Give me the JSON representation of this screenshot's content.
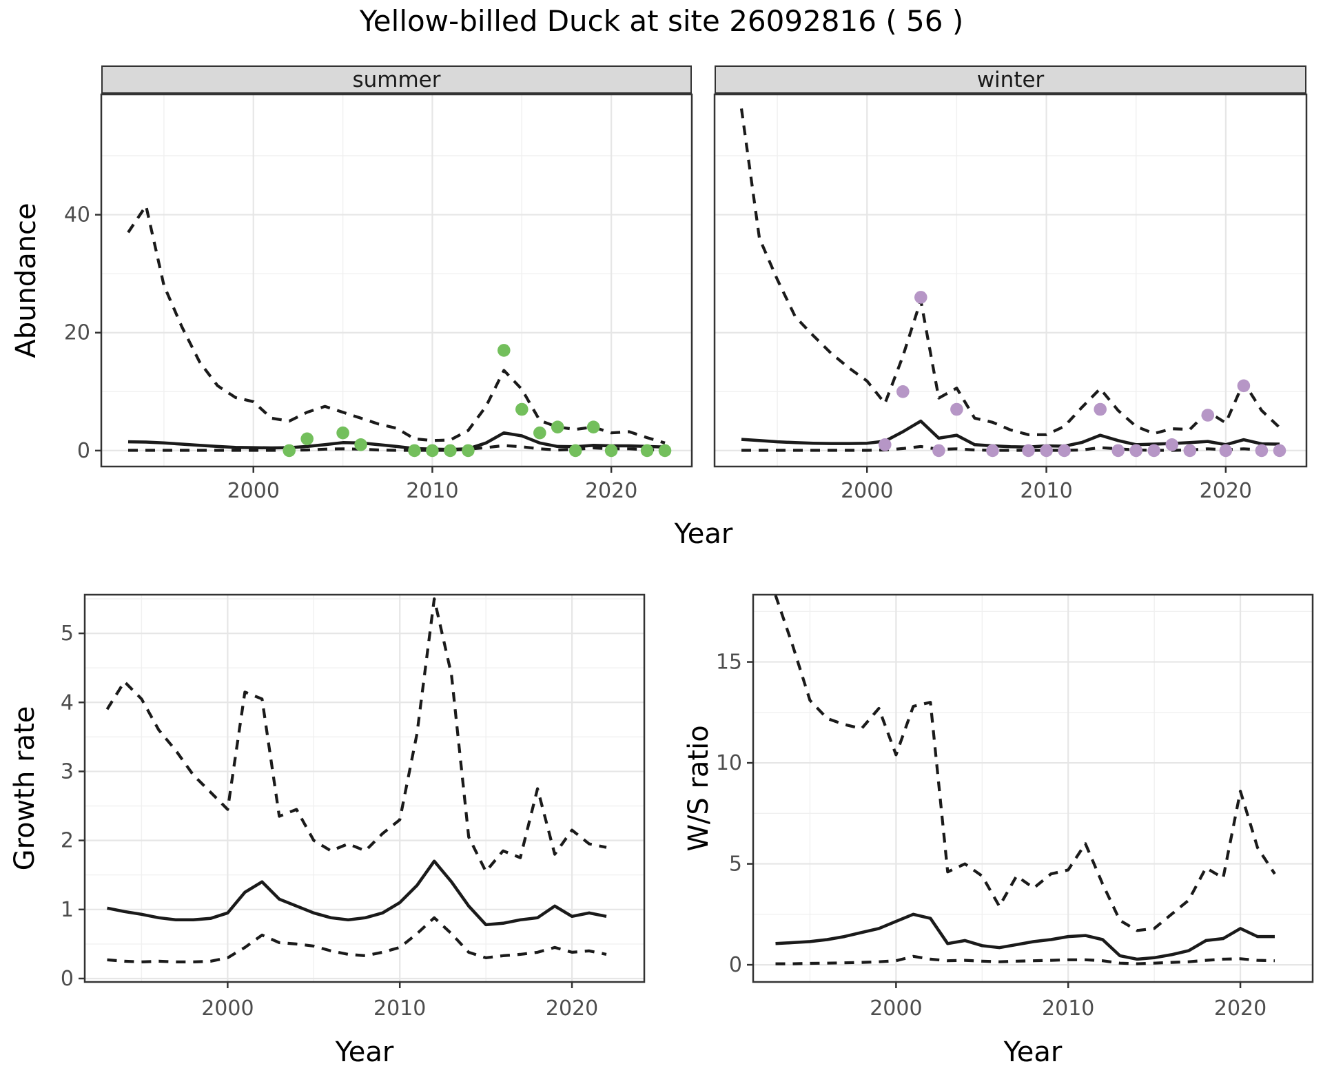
{
  "title": "Yellow-billed Duck at site 26092816 ( 56 )",
  "facets": [
    {
      "label": "summer"
    },
    {
      "label": "winter"
    }
  ],
  "axes": {
    "year": "Year",
    "abundance": "Abundance",
    "growth": "Growth rate",
    "ws": "W/S ratio"
  },
  "colors": {
    "summer_points": "#73BF5C",
    "winter_points": "#B696C6",
    "line": "#1A1A1A",
    "strip_fill": "#D9D9D9",
    "strip_border": "#333333",
    "panel_border": "#333333",
    "grid_major": "#E6E6E6",
    "grid_minor": "#F0F0F0",
    "tick_text": "#4D4D4D",
    "tick_mark": "#333333",
    "title_text": "#000000"
  },
  "chart_data": [
    {
      "id": "abundance-summer",
      "type": "line",
      "facet": "summer",
      "xlabel": "Year",
      "ylabel": "Abundance",
      "x": [
        1993,
        1994,
        1995,
        1996,
        1997,
        1998,
        1999,
        2000,
        2001,
        2002,
        2003,
        2004,
        2005,
        2006,
        2007,
        2008,
        2009,
        2010,
        2011,
        2012,
        2013,
        2014,
        2015,
        2016,
        2017,
        2018,
        2019,
        2020,
        2021,
        2022,
        2023
      ],
      "series": [
        {
          "name": "median",
          "style": "solid",
          "values": [
            1.5,
            1.45,
            1.3,
            1.1,
            0.9,
            0.7,
            0.55,
            0.5,
            0.45,
            0.5,
            0.7,
            1.0,
            1.35,
            1.3,
            1.0,
            0.7,
            0.35,
            0.25,
            0.2,
            0.3,
            1.3,
            3.0,
            2.5,
            1.3,
            0.7,
            0.65,
            0.9,
            0.8,
            0.8,
            0.7,
            0.6
          ]
        },
        {
          "name": "upper_ci",
          "style": "dashed",
          "values": [
            37,
            41.5,
            28,
            21,
            15,
            11,
            9,
            8.3,
            5.5,
            5.0,
            6.5,
            7.5,
            6.5,
            5.5,
            4.5,
            3.8,
            2.0,
            1.7,
            1.8,
            3.4,
            7.5,
            13.6,
            10.4,
            5.1,
            4.0,
            3.6,
            4.0,
            3.0,
            3.2,
            2.2,
            1.3
          ]
        },
        {
          "name": "lower_ci",
          "style": "dashed",
          "values": [
            0.05,
            0.05,
            0.05,
            0.05,
            0.05,
            0.05,
            0.05,
            0.05,
            0.05,
            0.05,
            0.1,
            0.25,
            0.3,
            0.25,
            0.1,
            0.05,
            0.05,
            0.05,
            0.05,
            0.25,
            0.5,
            0.85,
            0.65,
            0.3,
            0.1,
            0.2,
            0.45,
            0.3,
            0.3,
            0.15,
            0.05
          ]
        }
      ],
      "points": {
        "name": "observed-counts",
        "color_key": "summer_points",
        "xy": [
          [
            2002,
            0
          ],
          [
            2003,
            2
          ],
          [
            2005,
            3
          ],
          [
            2006,
            1
          ],
          [
            2009,
            0
          ],
          [
            2010,
            0
          ],
          [
            2011,
            0
          ],
          [
            2012,
            0
          ],
          [
            2014,
            17
          ],
          [
            2015,
            7
          ],
          [
            2016,
            3
          ],
          [
            2017,
            4
          ],
          [
            2018,
            0
          ],
          [
            2019,
            4
          ],
          [
            2020,
            0
          ],
          [
            2022,
            0
          ],
          [
            2023,
            0
          ]
        ]
      },
      "xlim": [
        1991.5,
        2024.5
      ],
      "ylim": [
        -2.7,
        60.4
      ],
      "xticks": [
        2000,
        2010,
        2020
      ],
      "xminor": [
        1995,
        2005,
        2015
      ],
      "yticks": [
        0,
        20,
        40
      ],
      "yminor": [
        10,
        30,
        50
      ],
      "ytick_labels": true,
      "grid": true
    },
    {
      "id": "abundance-winter",
      "type": "line",
      "facet": "winter",
      "xlabel": "Year",
      "ylabel": "Abundance",
      "x": [
        1993,
        1994,
        1995,
        1996,
        1997,
        1998,
        1999,
        2000,
        2001,
        2002,
        2003,
        2004,
        2005,
        2006,
        2007,
        2008,
        2009,
        2010,
        2011,
        2012,
        2013,
        2014,
        2015,
        2016,
        2017,
        2018,
        2019,
        2020,
        2021,
        2022,
        2023
      ],
      "series": [
        {
          "name": "median",
          "style": "solid",
          "values": [
            1.9,
            1.7,
            1.5,
            1.35,
            1.25,
            1.2,
            1.2,
            1.25,
            1.6,
            3.2,
            5.0,
            2.1,
            2.6,
            1.0,
            0.8,
            0.65,
            0.6,
            0.8,
            0.75,
            1.4,
            2.6,
            1.7,
            1.0,
            1.1,
            1.2,
            1.35,
            1.55,
            1.0,
            1.85,
            1.15,
            1.1
          ]
        },
        {
          "name": "upper_ci",
          "style": "dashed",
          "values": [
            58,
            36,
            29,
            22.7,
            19.5,
            16.5,
            14,
            11.8,
            8.0,
            16,
            25.5,
            8.9,
            10.6,
            5.5,
            4.8,
            3.5,
            2.7,
            2.7,
            4.1,
            7.4,
            10.5,
            6.8,
            4.1,
            2.9,
            3.7,
            3.6,
            6.6,
            4.7,
            11.6,
            6.8,
            3.9
          ]
        },
        {
          "name": "lower_ci",
          "style": "dashed",
          "values": [
            0.05,
            0.05,
            0.05,
            0.05,
            0.05,
            0.05,
            0.05,
            0.05,
            0.1,
            0.35,
            0.7,
            0.2,
            0.3,
            0.1,
            0.05,
            0.05,
            0.05,
            0.05,
            0.05,
            0.1,
            0.5,
            0.3,
            0.1,
            0.05,
            0.05,
            0.1,
            0.3,
            0.15,
            0.3,
            0.1,
            0.05
          ]
        }
      ],
      "points": {
        "name": "observed-counts",
        "color_key": "winter_points",
        "xy": [
          [
            2001,
            1
          ],
          [
            2002,
            10
          ],
          [
            2003,
            26
          ],
          [
            2004,
            0
          ],
          [
            2005,
            7
          ],
          [
            2007,
            0
          ],
          [
            2009,
            0
          ],
          [
            2010,
            0
          ],
          [
            2011,
            0
          ],
          [
            2013,
            7
          ],
          [
            2014,
            0
          ],
          [
            2015,
            0
          ],
          [
            2016,
            0
          ],
          [
            2017,
            1
          ],
          [
            2018,
            0
          ],
          [
            2019,
            6
          ],
          [
            2020,
            0
          ],
          [
            2021,
            11
          ],
          [
            2022,
            0
          ],
          [
            2023,
            0
          ]
        ]
      },
      "xlim": [
        1991.5,
        2024.5
      ],
      "ylim": [
        -2.7,
        60.4
      ],
      "xticks": [
        2000,
        2010,
        2020
      ],
      "xminor": [
        1995,
        2005,
        2015
      ],
      "yticks": [
        0,
        20,
        40
      ],
      "yminor": [
        10,
        30,
        50
      ],
      "ytick_labels": false,
      "grid": true
    },
    {
      "id": "growth-rate",
      "type": "line",
      "facet": null,
      "xlabel": "Year",
      "ylabel": "Growth rate",
      "x": [
        1993,
        1994,
        1995,
        1996,
        1997,
        1998,
        1999,
        2000,
        2001,
        2002,
        2003,
        2004,
        2005,
        2006,
        2007,
        2008,
        2009,
        2010,
        2011,
        2012,
        2013,
        2014,
        2015,
        2016,
        2017,
        2018,
        2019,
        2020,
        2021,
        2022
      ],
      "series": [
        {
          "name": "median",
          "style": "solid",
          "values": [
            1.02,
            0.97,
            0.93,
            0.88,
            0.85,
            0.85,
            0.87,
            0.95,
            1.25,
            1.4,
            1.15,
            1.05,
            0.95,
            0.88,
            0.85,
            0.88,
            0.95,
            1.1,
            1.35,
            1.7,
            1.4,
            1.05,
            0.78,
            0.8,
            0.85,
            0.88,
            1.05,
            0.9,
            0.95,
            0.9
          ]
        },
        {
          "name": "upper_ci",
          "style": "dashed",
          "values": [
            3.9,
            4.3,
            4.05,
            3.6,
            3.3,
            2.95,
            2.7,
            2.45,
            4.15,
            4.05,
            2.35,
            2.45,
            2.0,
            1.85,
            1.95,
            1.85,
            2.1,
            2.3,
            3.55,
            5.5,
            4.4,
            2.05,
            1.55,
            1.85,
            1.75,
            2.75,
            1.8,
            2.15,
            1.95,
            1.9
          ]
        },
        {
          "name": "lower_ci",
          "style": "dashed",
          "values": [
            0.27,
            0.25,
            0.24,
            0.25,
            0.24,
            0.24,
            0.25,
            0.3,
            0.45,
            0.63,
            0.52,
            0.5,
            0.47,
            0.4,
            0.35,
            0.33,
            0.38,
            0.45,
            0.65,
            0.88,
            0.65,
            0.38,
            0.3,
            0.33,
            0.35,
            0.38,
            0.45,
            0.38,
            0.4,
            0.35
          ]
        }
      ],
      "points": null,
      "xlim": [
        1991.7,
        2024.2
      ],
      "ylim": [
        -0.05,
        5.56
      ],
      "xticks": [
        2000,
        2010,
        2020
      ],
      "xminor": [
        1995,
        2005,
        2015
      ],
      "yticks": [
        0,
        1,
        2,
        3,
        4,
        5
      ],
      "yminor": [
        0.5,
        1.5,
        2.5,
        3.5,
        4.5,
        5.5
      ],
      "ytick_labels": true,
      "grid": true
    },
    {
      "id": "ws-ratio",
      "type": "line",
      "facet": null,
      "xlabel": "Year",
      "ylabel": "W/S ratio",
      "x": [
        1993,
        1994,
        1995,
        1996,
        1997,
        1998,
        1999,
        2000,
        2001,
        2002,
        2003,
        2004,
        2005,
        2006,
        2007,
        2008,
        2009,
        2010,
        2011,
        2012,
        2013,
        2014,
        2015,
        2016,
        2017,
        2018,
        2019,
        2020,
        2021,
        2022
      ],
      "series": [
        {
          "name": "median",
          "style": "solid",
          "values": [
            1.05,
            1.1,
            1.15,
            1.25,
            1.4,
            1.6,
            1.8,
            2.15,
            2.5,
            2.3,
            1.05,
            1.2,
            0.95,
            0.85,
            1.0,
            1.15,
            1.25,
            1.4,
            1.45,
            1.25,
            0.45,
            0.28,
            0.35,
            0.5,
            0.7,
            1.2,
            1.3,
            1.8,
            1.4,
            1.4
          ]
        },
        {
          "name": "upper_ci",
          "style": "dashed",
          "values": [
            18.3,
            15.8,
            13.1,
            12.2,
            11.9,
            11.7,
            12.7,
            10.4,
            12.8,
            13.0,
            4.6,
            5.0,
            4.4,
            2.9,
            4.4,
            3.8,
            4.5,
            4.7,
            6.0,
            4.0,
            2.2,
            1.7,
            1.8,
            2.5,
            3.2,
            4.8,
            4.3,
            8.6,
            5.8,
            4.5
          ]
        },
        {
          "name": "lower_ci",
          "style": "dashed",
          "values": [
            0.05,
            0.05,
            0.07,
            0.08,
            0.1,
            0.12,
            0.15,
            0.2,
            0.42,
            0.28,
            0.2,
            0.22,
            0.18,
            0.15,
            0.18,
            0.2,
            0.22,
            0.25,
            0.25,
            0.2,
            0.08,
            0.05,
            0.08,
            0.12,
            0.15,
            0.22,
            0.28,
            0.3,
            0.22,
            0.2
          ]
        }
      ],
      "points": null,
      "xlim": [
        1991.7,
        2024.2
      ],
      "ylim": [
        -0.85,
        18.33
      ],
      "xticks": [
        2000,
        2010,
        2020
      ],
      "xminor": [
        1995,
        2005,
        2015
      ],
      "yticks": [
        0,
        5,
        10,
        15
      ],
      "yminor": [
        2.5,
        7.5,
        12.5,
        17.5
      ],
      "ytick_labels": true,
      "grid": true
    }
  ]
}
